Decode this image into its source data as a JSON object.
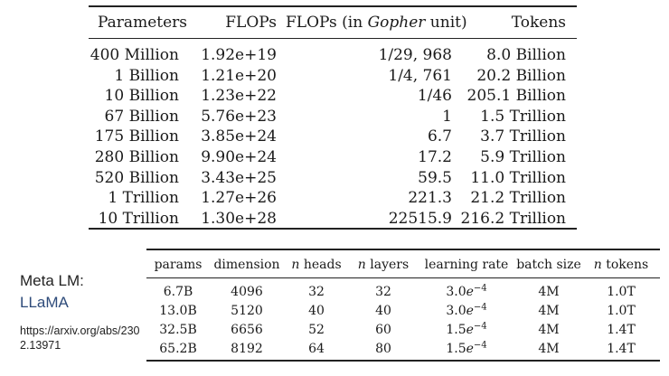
{
  "gopher_table": {
    "headers": {
      "params": "Parameters",
      "flops": "FLOPs",
      "gopher_prefix": "FLOPs (in ",
      "gopher_italic": "Gopher",
      "gopher_suffix": " unit)",
      "tokens": "Tokens"
    },
    "rows": [
      {
        "params": "400 Million",
        "flops": "1.92e+19",
        "gopher": "1/29, 968",
        "tokens": "8.0 Billion"
      },
      {
        "params": "1 Billion",
        "flops": "1.21e+20",
        "gopher": "1/4, 761",
        "tokens": "20.2 Billion"
      },
      {
        "params": "10 Billion",
        "flops": "1.23e+22",
        "gopher": "1/46",
        "tokens": "205.1 Billion"
      },
      {
        "params": "67 Billion",
        "flops": "5.76e+23",
        "gopher": "1",
        "tokens": "1.5 Trillion"
      },
      {
        "params": "175 Billion",
        "flops": "3.85e+24",
        "gopher": "6.7",
        "tokens": "3.7 Trillion"
      },
      {
        "params": "280 Billion",
        "flops": "9.90e+24",
        "gopher": "17.2",
        "tokens": "5.9 Trillion"
      },
      {
        "params": "520 Billion",
        "flops": "3.43e+25",
        "gopher": "59.5",
        "tokens": "11.0 Trillion"
      },
      {
        "params": "1 Trillion",
        "flops": "1.27e+26",
        "gopher": "221.3",
        "tokens": "21.2 Trillion"
      },
      {
        "params": "10 Trillion",
        "flops": "1.30e+28",
        "gopher": "22515.9",
        "tokens": "216.2 Trillion"
      }
    ]
  },
  "caption": {
    "line1": "Meta LM:",
    "line2": "LLaMA",
    "link": "https://arxiv.org/abs/2302.13971"
  },
  "llama_table": {
    "headers": {
      "params": "params",
      "dimension": "dimension",
      "n_heads_var": "n",
      "n_heads": " heads",
      "n_layers_var": "n",
      "n_layers": " layers",
      "lr": "learning rate",
      "batch": "batch size",
      "n_tokens_var": "n",
      "n_tokens": " tokens"
    },
    "rows": [
      {
        "params": "6.7B",
        "dimension": "4096",
        "heads": "32",
        "layers": "32",
        "lr_base": "3.0",
        "lr_exp": "−4",
        "batch": "4M",
        "tokens": "1.0T"
      },
      {
        "params": "13.0B",
        "dimension": "5120",
        "heads": "40",
        "layers": "40",
        "lr_base": "3.0",
        "lr_exp": "−4",
        "batch": "4M",
        "tokens": "1.0T"
      },
      {
        "params": "32.5B",
        "dimension": "6656",
        "heads": "52",
        "layers": "60",
        "lr_base": "1.5",
        "lr_exp": "−4",
        "batch": "4M",
        "tokens": "1.4T"
      },
      {
        "params": "65.2B",
        "dimension": "8192",
        "heads": "64",
        "layers": "80",
        "lr_base": "1.5",
        "lr_exp": "−4",
        "batch": "4M",
        "tokens": "1.4T"
      }
    ],
    "lr_var": "e"
  }
}
